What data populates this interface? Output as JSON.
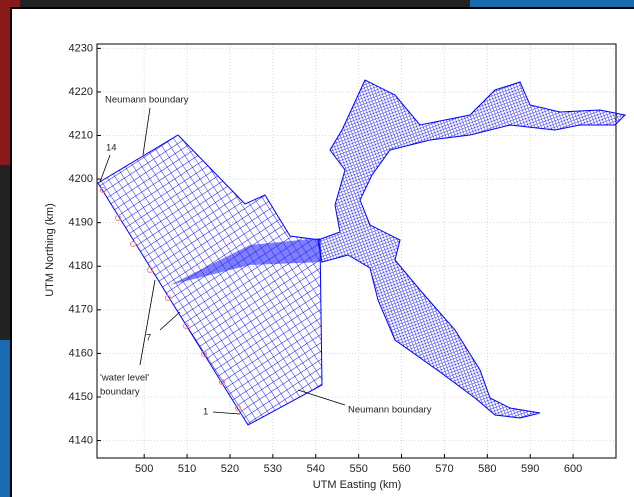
{
  "chart_data": {
    "type": "mesh",
    "xlabel": "UTM Easting (km)",
    "ylabel": "UTM Northing (km)",
    "xlim": [
      489,
      610
    ],
    "ylim": [
      4136,
      4231
    ],
    "xticks": [
      500,
      510,
      520,
      530,
      540,
      550,
      560,
      570,
      580,
      590,
      600
    ],
    "yticks": [
      4140,
      4150,
      4160,
      4170,
      4180,
      4190,
      4200,
      4210,
      4220,
      4230
    ],
    "grid": true,
    "color": "#0000ff",
    "annotations": [
      "Neumann boundary",
      "14",
      "7",
      "'water level'",
      "boundary",
      "1",
      "Neumann boundary"
    ]
  }
}
